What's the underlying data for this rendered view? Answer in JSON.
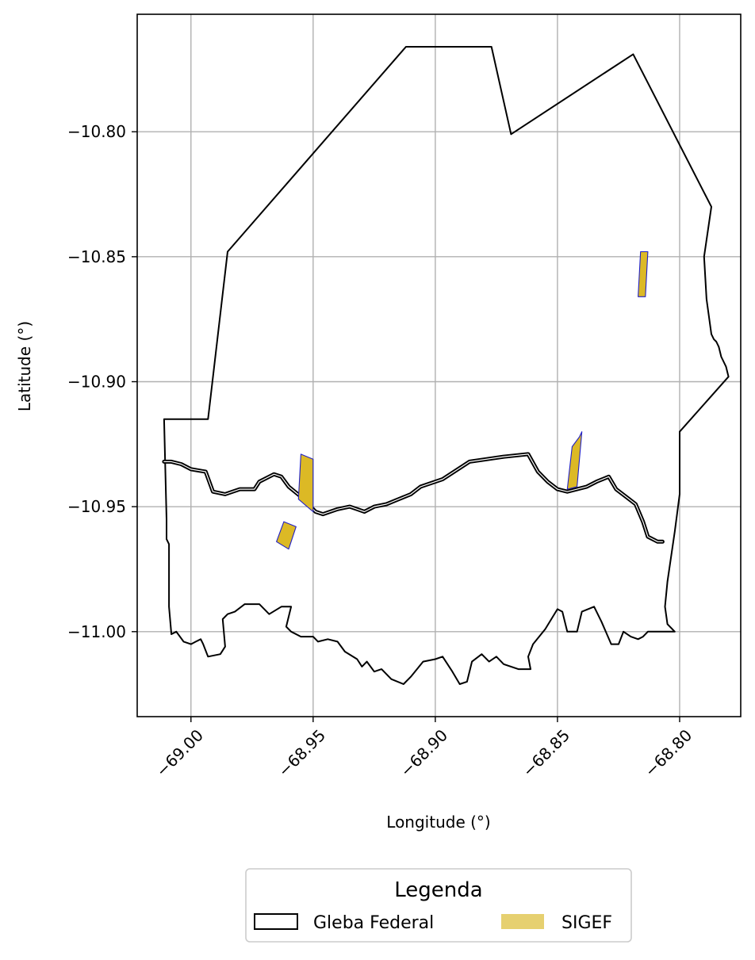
{
  "chart_data": {
    "type": "map",
    "title": "",
    "xlabel": "Longitude (°)",
    "ylabel": "Latitude (°)",
    "xlim": [
      -69.022,
      -68.775
    ],
    "ylim": [
      -11.034,
      -10.753
    ],
    "x_ticks": [
      -69.0,
      -68.95,
      -68.9,
      -68.85,
      -68.8
    ],
    "x_tick_labels": [
      "−69.00",
      "−68.95",
      "−68.90",
      "−68.85",
      "−68.80"
    ],
    "y_ticks": [
      -10.8,
      -10.85,
      -10.9,
      -10.95,
      -11.0
    ],
    "y_tick_labels": [
      "−10.80",
      "−10.85",
      "−10.90",
      "−10.95",
      "−11.00"
    ],
    "grid": true,
    "legend": {
      "title": "Legenda",
      "placement": "bottom-center",
      "items": [
        {
          "label": "Gleba Federal",
          "style": "outline",
          "color": "#000000"
        },
        {
          "label": "SIGEF",
          "style": "fill",
          "color": "#e6d070"
        }
      ]
    },
    "colors": {
      "gleba_stroke": "#000000",
      "sigef_fill": "#dcb925",
      "sigef_stroke": "#2020c8",
      "grid": "#b0b0b0"
    },
    "layers": [
      {
        "name": "Gleba Federal",
        "kind": "outline",
        "polygons": [
          [
            [
              -69.011,
              -10.915
            ],
            [
              -68.993,
              -10.915
            ],
            [
              -68.985,
              -10.848
            ],
            [
              -68.912,
              -10.766
            ],
            [
              -68.877,
              -10.766
            ],
            [
              -68.869,
              -10.801
            ],
            [
              -68.819,
              -10.769
            ],
            [
              -68.787,
              -10.83
            ],
            [
              -68.79,
              -10.85
            ],
            [
              -68.789,
              -10.867
            ],
            [
              -68.787,
              -10.881
            ],
            [
              -68.786,
              -10.883
            ],
            [
              -68.785,
              -10.884
            ],
            [
              -68.784,
              -10.886
            ],
            [
              -68.783,
              -10.89
            ],
            [
              -68.781,
              -10.894
            ],
            [
              -68.78,
              -10.898
            ],
            [
              -68.8,
              -10.92
            ],
            [
              -68.8,
              -10.93
            ],
            [
              -68.8,
              -10.945
            ],
            [
              -68.802,
              -10.96
            ],
            [
              -68.805,
              -10.98
            ],
            [
              -68.806,
              -10.99
            ],
            [
              -68.805,
              -10.997
            ],
            [
              -68.803,
              -10.999
            ],
            [
              -68.802,
              -11.0
            ],
            [
              -68.813,
              -11.0
            ],
            [
              -68.815,
              -11.002
            ],
            [
              -68.817,
              -11.003
            ],
            [
              -68.82,
              -11.002
            ],
            [
              -68.823,
              -11.0
            ],
            [
              -68.825,
              -11.005
            ],
            [
              -68.828,
              -11.005
            ],
            [
              -68.832,
              -10.996
            ],
            [
              -68.835,
              -10.99
            ],
            [
              -68.84,
              -10.992
            ],
            [
              -68.842,
              -11.0
            ],
            [
              -68.846,
              -11.0
            ],
            [
              -68.848,
              -10.992
            ],
            [
              -68.85,
              -10.991
            ],
            [
              -68.855,
              -10.999
            ],
            [
              -68.86,
              -11.005
            ],
            [
              -68.862,
              -11.01
            ],
            [
              -68.861,
              -11.015
            ],
            [
              -68.866,
              -11.015
            ],
            [
              -68.872,
              -11.013
            ],
            [
              -68.875,
              -11.01
            ],
            [
              -68.878,
              -11.012
            ],
            [
              -68.881,
              -11.009
            ],
            [
              -68.885,
              -11.012
            ],
            [
              -68.887,
              -11.02
            ],
            [
              -68.89,
              -11.021
            ],
            [
              -68.893,
              -11.016
            ],
            [
              -68.897,
              -11.01
            ],
            [
              -68.9,
              -11.011
            ],
            [
              -68.905,
              -11.012
            ],
            [
              -68.91,
              -11.018
            ],
            [
              -68.913,
              -11.021
            ],
            [
              -68.918,
              -11.019
            ],
            [
              -68.922,
              -11.015
            ],
            [
              -68.925,
              -11.016
            ],
            [
              -68.928,
              -11.012
            ],
            [
              -68.93,
              -11.014
            ],
            [
              -68.932,
              -11.011
            ],
            [
              -68.937,
              -11.008
            ],
            [
              -68.94,
              -11.004
            ],
            [
              -68.944,
              -11.003
            ],
            [
              -68.948,
              -11.004
            ],
            [
              -68.95,
              -11.002
            ],
            [
              -68.955,
              -11.002
            ],
            [
              -68.959,
              -11.0
            ],
            [
              -68.961,
              -10.998
            ],
            [
              -68.959,
              -10.99
            ],
            [
              -68.963,
              -10.99
            ],
            [
              -68.968,
              -10.993
            ],
            [
              -68.972,
              -10.989
            ],
            [
              -68.978,
              -10.989
            ],
            [
              -68.982,
              -10.992
            ],
            [
              -68.985,
              -10.993
            ],
            [
              -68.987,
              -10.995
            ],
            [
              -68.986,
              -11.006
            ],
            [
              -68.988,
              -11.009
            ],
            [
              -68.993,
              -11.01
            ],
            [
              -68.995,
              -11.005
            ],
            [
              -68.996,
              -11.003
            ],
            [
              -68.998,
              -11.004
            ],
            [
              -69.0,
              -11.005
            ],
            [
              -69.003,
              -11.004
            ],
            [
              -69.006,
              -11.0
            ],
            [
              -69.008,
              -11.001
            ],
            [
              -69.009,
              -10.99
            ],
            [
              -69.009,
              -10.965
            ],
            [
              -69.01,
              -10.963
            ],
            [
              -69.01,
              -10.955
            ],
            [
              -69.011,
              -10.915
            ]
          ]
        ],
        "lines": [
          [
            [
              -69.011,
              -10.932
            ],
            [
              -69.008,
              -10.932
            ],
            [
              -69.004,
              -10.933
            ],
            [
              -69.0,
              -10.935
            ],
            [
              -68.994,
              -10.936
            ],
            [
              -68.991,
              -10.944
            ],
            [
              -68.986,
              -10.945
            ],
            [
              -68.98,
              -10.943
            ],
            [
              -68.974,
              -10.943
            ],
            [
              -68.972,
              -10.94
            ],
            [
              -68.966,
              -10.937
            ],
            [
              -68.963,
              -10.938
            ],
            [
              -68.96,
              -10.942
            ],
            [
              -68.955,
              -10.946
            ],
            [
              -68.949,
              -10.952
            ],
            [
              -68.946,
              -10.953
            ],
            [
              -68.94,
              -10.951
            ],
            [
              -68.935,
              -10.95
            ],
            [
              -68.932,
              -10.951
            ],
            [
              -68.929,
              -10.952
            ],
            [
              -68.925,
              -10.95
            ],
            [
              -68.92,
              -10.949
            ],
            [
              -68.915,
              -10.947
            ],
            [
              -68.91,
              -10.945
            ],
            [
              -68.906,
              -10.942
            ],
            [
              -68.897,
              -10.939
            ],
            [
              -68.886,
              -10.932
            ],
            [
              -68.872,
              -10.93
            ],
            [
              -68.862,
              -10.929
            ],
            [
              -68.858,
              -10.936
            ],
            [
              -68.854,
              -10.94
            ],
            [
              -68.85,
              -10.943
            ],
            [
              -68.846,
              -10.944
            ],
            [
              -68.838,
              -10.942
            ],
            [
              -68.834,
              -10.94
            ],
            [
              -68.829,
              -10.938
            ],
            [
              -68.826,
              -10.943
            ],
            [
              -68.822,
              -10.946
            ],
            [
              -68.818,
              -10.949
            ],
            [
              -68.815,
              -10.956
            ],
            [
              -68.813,
              -10.962
            ],
            [
              -68.809,
              -10.964
            ],
            [
              -68.807,
              -10.964
            ]
          ]
        ]
      },
      {
        "name": "SIGEF",
        "kind": "fill",
        "polygons": [
          [
            [
              -68.955,
              -10.929
            ],
            [
              -68.95,
              -10.931
            ],
            [
              -68.95,
              -10.952
            ],
            [
              -68.956,
              -10.947
            ]
          ],
          [
            [
              -68.962,
              -10.956
            ],
            [
              -68.957,
              -10.958
            ],
            [
              -68.96,
              -10.967
            ],
            [
              -68.965,
              -10.964
            ]
          ],
          [
            [
              -68.844,
              -10.926
            ],
            [
              -68.841,
              -10.922
            ],
            [
              -68.84,
              -10.92
            ],
            [
              -68.842,
              -10.942
            ],
            [
              -68.846,
              -10.943
            ]
          ],
          [
            [
              -68.816,
              -10.848
            ],
            [
              -68.813,
              -10.848
            ],
            [
              -68.814,
              -10.866
            ],
            [
              -68.816,
              -10.866
            ],
            [
              -68.817,
              -10.866
            ]
          ]
        ]
      }
    ]
  }
}
